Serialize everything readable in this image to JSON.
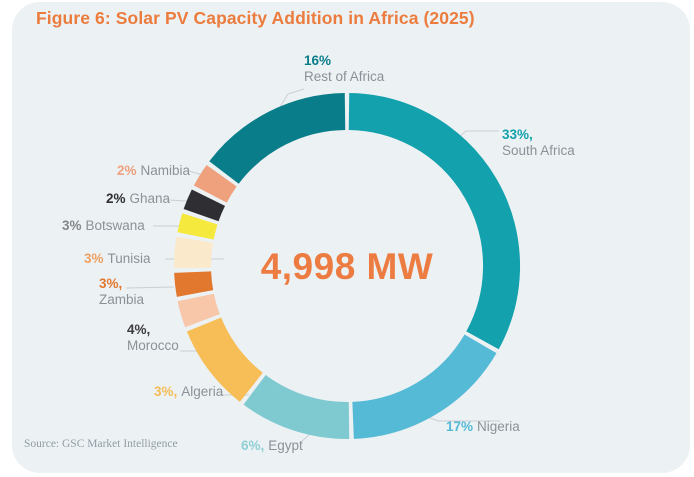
{
  "card": {
    "title": "Figure 6: Solar PV Capacity Addition in Africa (2025)",
    "title_color": "#EC7C3E",
    "background": "#ECF1F3",
    "source": "Source: GSC Market Intelligence"
  },
  "center": {
    "value": "4,998 MW",
    "color": "#ED7C42"
  },
  "chart_data": {
    "type": "pie",
    "subtype": "donut",
    "title": "Figure 6: Solar PV Capacity Addition in Africa (2025)",
    "center_label": "4,998 MW",
    "total_mw": 4998,
    "unit": "percent of total capacity",
    "legend_position": "around-donut",
    "segments": [
      {
        "name": "South Africa",
        "percent": 33,
        "percent_text": "33%,",
        "color": "#12A1AD",
        "percent_color": "#12A1AD",
        "start_deg": 0,
        "end_deg": 119.5
      },
      {
        "name": "Nigeria",
        "percent": 17,
        "percent_text": "17%",
        "color": "#55BAD6",
        "percent_color": "#55BAD6",
        "start_deg": 119.5,
        "end_deg": 178.5
      },
      {
        "name": "Egypt",
        "percent": 6,
        "percent_text": "6%,",
        "color": "#7FCAD1",
        "percent_color": "#8FCFD6",
        "start_deg": 178.5,
        "end_deg": 217.5
      },
      {
        "name": "Algeria",
        "percent": 3,
        "percent_text": "3%,",
        "color": "#F7BE57",
        "percent_color": "#F5BC55",
        "start_deg": 217.5,
        "end_deg": 248.5
      },
      {
        "name": "Morocco",
        "percent": 4,
        "percent_text": "4%,",
        "color": "#F8C6A9",
        "percent_color": "#3C3C40",
        "start_deg": 248.5,
        "end_deg": 259
      },
      {
        "name": "Zambia",
        "percent": 3,
        "percent_text": "3%,",
        "color": "#E2772E",
        "percent_color": "#E2772E",
        "start_deg": 259,
        "end_deg": 268.5
      },
      {
        "name": "Tunisia",
        "percent": 3,
        "percent_text": "3%",
        "color": "#FBE9CB",
        "percent_color": "#EFA061",
        "start_deg": 268.5,
        "end_deg": 280.5
      },
      {
        "name": "Botswana",
        "percent": 3,
        "percent_text": "3%",
        "color": "#F5E93E",
        "percent_color": "#85878A",
        "start_deg": 280.5,
        "end_deg": 288.5
      },
      {
        "name": "Ghana",
        "percent": 2,
        "percent_text": "2%",
        "color": "#2E2E33",
        "percent_color": "#2E2E33",
        "start_deg": 288.5,
        "end_deg": 297
      },
      {
        "name": "Namibia",
        "percent": 2,
        "percent_text": "2%",
        "color": "#EFA17D",
        "percent_color": "#EFA17D",
        "start_deg": 297,
        "end_deg": 306.5
      },
      {
        "name": "Rest of Africa",
        "percent": 16,
        "percent_text": "16%",
        "color": "#0A7D8A",
        "percent_color": "#0A7D8A",
        "start_deg": 306.5,
        "end_deg": 360
      }
    ]
  }
}
